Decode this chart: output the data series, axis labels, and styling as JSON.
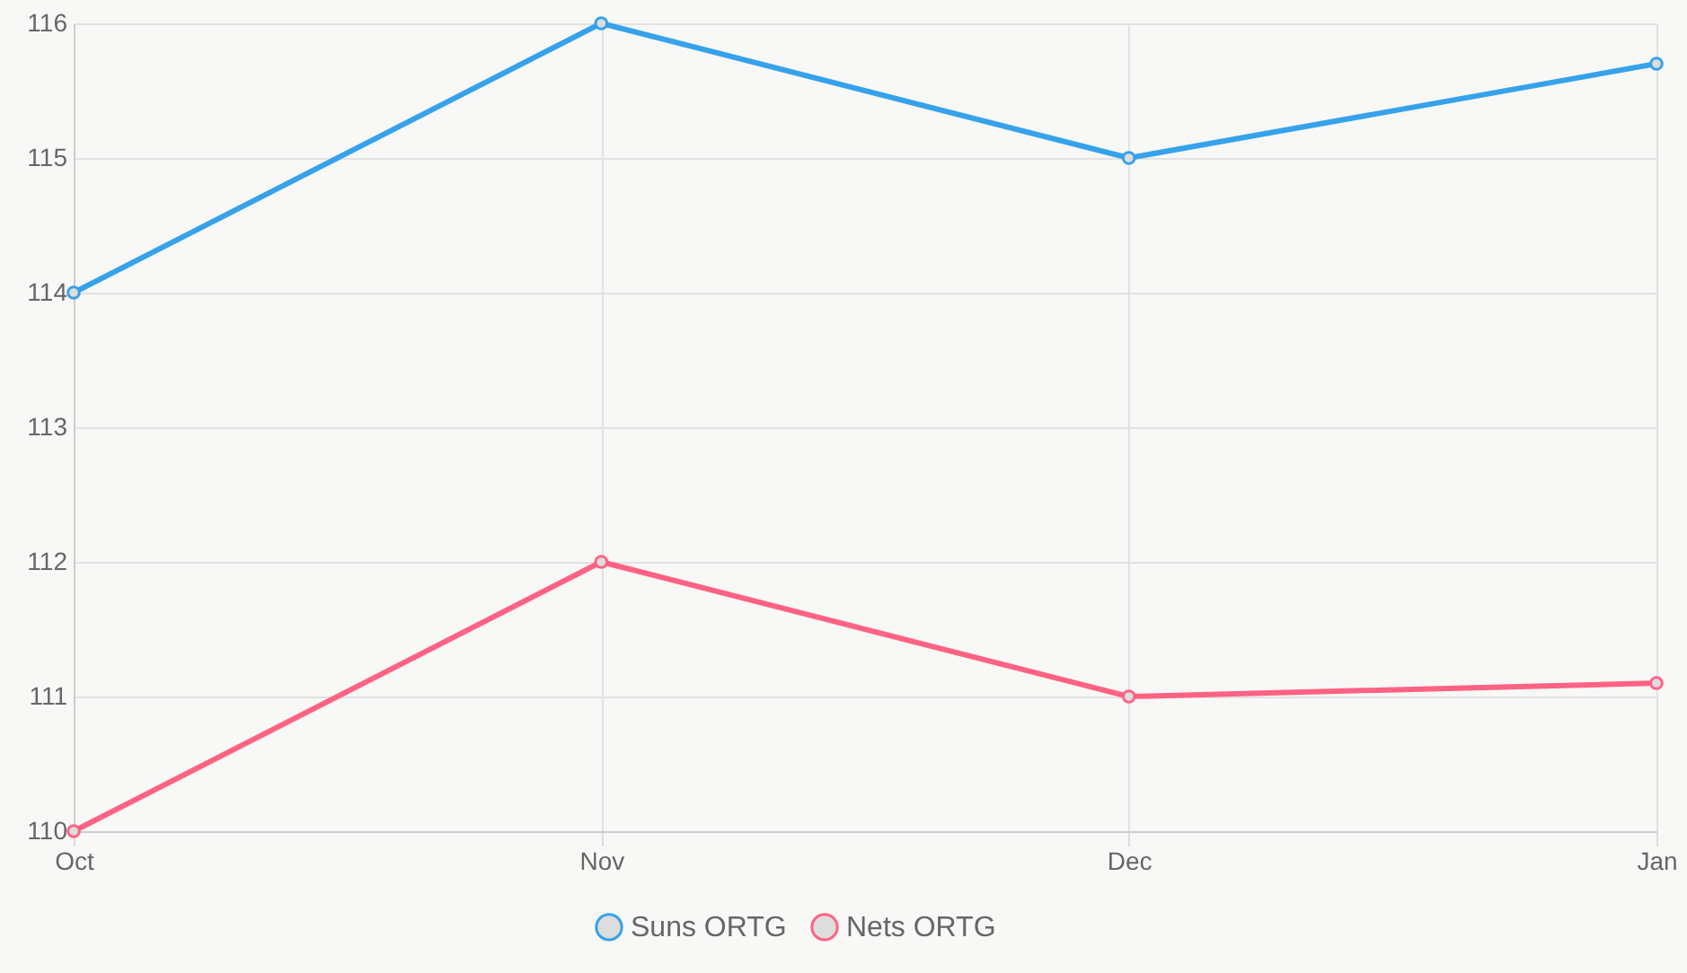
{
  "chart_data": {
    "type": "line",
    "categories": [
      "Oct",
      "Nov",
      "Dec",
      "Jan"
    ],
    "series": [
      {
        "name": "Suns ORTG",
        "color": "#36a2eb",
        "values": [
          114,
          116,
          115,
          115.7
        ]
      },
      {
        "name": "Nets ORTG",
        "color": "#ff6384",
        "values": [
          110,
          112,
          111,
          111.1
        ]
      }
    ],
    "ylim": [
      110,
      116
    ],
    "yticks": [
      110,
      111,
      112,
      113,
      114,
      115,
      116
    ],
    "grid": true,
    "legend": "bottom",
    "marker": "circle"
  }
}
